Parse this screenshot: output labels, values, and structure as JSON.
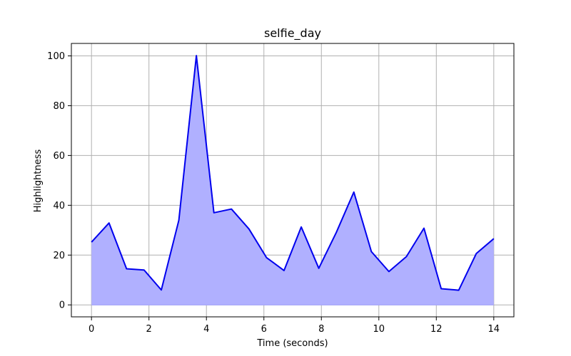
{
  "chart_data": {
    "type": "area",
    "title": "selfie_day",
    "xlabel": "Time (seconds)",
    "ylabel": "Highlightness",
    "xlim": [
      -0.7,
      14.7
    ],
    "ylim": [
      -4.8,
      105
    ],
    "xticks": [
      0,
      2,
      4,
      6,
      8,
      10,
      12,
      14
    ],
    "yticks": [
      0,
      20,
      40,
      60,
      80,
      100
    ],
    "xtick_labels": [
      "0",
      "2",
      "4",
      "6",
      "8",
      "10",
      "12",
      "14"
    ],
    "ytick_labels": [
      "0",
      "20",
      "40",
      "60",
      "80",
      "100"
    ],
    "grid": true,
    "line_color": "#0000ee",
    "fill_color": "#b0b0ff",
    "grid_color": "#b0b0b0",
    "series": [
      {
        "x": [
          0.0,
          0.61,
          1.22,
          1.83,
          2.43,
          3.04,
          3.65,
          4.26,
          4.87,
          5.48,
          6.09,
          6.7,
          7.3,
          7.91,
          8.52,
          9.13,
          9.74,
          10.35,
          10.96,
          11.57,
          12.17,
          12.78,
          13.39,
          14.0
        ],
        "y": [
          25.2,
          32.9,
          14.5,
          14.0,
          6.0,
          34.0,
          100.1,
          37.0,
          38.5,
          30.5,
          19.0,
          13.8,
          31.3,
          14.7,
          29.1,
          45.3,
          21.4,
          13.4,
          19.4,
          30.8,
          6.5,
          5.9,
          20.6,
          26.6
        ]
      }
    ]
  }
}
